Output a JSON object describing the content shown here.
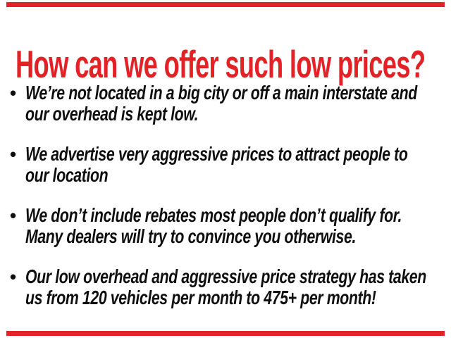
{
  "slide": {
    "title": "How can we offer such low prices?",
    "accent_color": "#e32227",
    "text_color": "#0f0f0f",
    "bullet_marker": "•",
    "bullets": [
      {
        "line1": "We’re not located in a big city or off a main interstate and",
        "line2": "our overhead is kept low."
      },
      {
        "line1": "We advertise very aggressive prices to attract people to",
        "line2": "our location"
      },
      {
        "line1": "We don’t include rebates most people don’t qualify for.",
        "line2": "Many dealers will try to convince you otherwise."
      },
      {
        "line1": "Our low overhead and aggressive price strategy has taken",
        "line2": "us from 120 vehicles per month to 475+ per month!"
      }
    ]
  }
}
